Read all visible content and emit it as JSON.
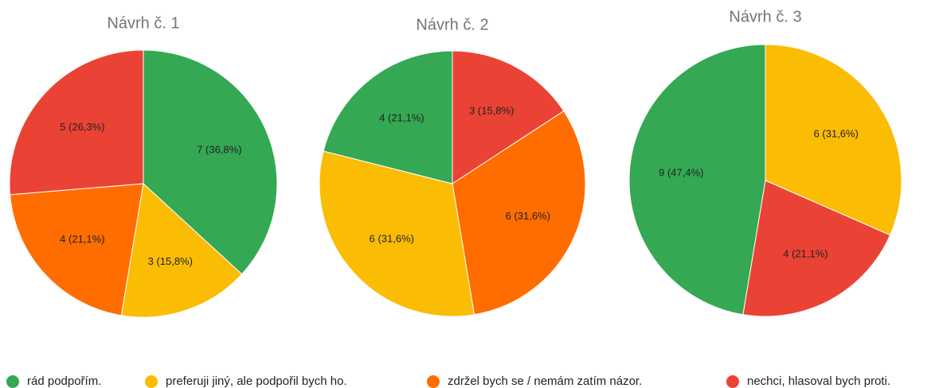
{
  "chart_data": [
    {
      "type": "pie",
      "title": "Návrh č. 1",
      "categories": [
        "rád podpořím.",
        "preferuji jiný, ale podpořil bych ho.",
        "zdržel bych se / nemám zatím názor.",
        "nechci, hlasoval bych proti."
      ],
      "values": [
        7,
        3,
        4,
        5
      ],
      "value_labels": [
        "7 (36,8%)",
        "3 (15,8%)",
        "4 (21,1%)",
        "5 (26,3%)"
      ]
    },
    {
      "type": "pie",
      "title": "Návrh č. 2",
      "categories": [
        "nechci, hlasoval bych proti.",
        "zdržel bych se / nemám zatím názor.",
        "preferuji jiný, ale podpořil bych ho.",
        "rád podpořím."
      ],
      "values": [
        3,
        6,
        6,
        4
      ],
      "value_labels": [
        "3 (15,8%)",
        "6 (31,6%)",
        "6 (31,6%)",
        "4 (21,1%)"
      ]
    },
    {
      "type": "pie",
      "title": "Návrh č. 3",
      "categories": [
        "preferuji jiný, ale podpořil bych ho.",
        "nechci, hlasoval bych proti.",
        "rád podpořím."
      ],
      "values": [
        6,
        4,
        9
      ],
      "value_labels": [
        "6 (31,6%)",
        "4 (21,1%)",
        "9 (47,4%)"
      ]
    }
  ],
  "legend": {
    "labels": [
      "rád podpořím.",
      "preferuji jiný, ale podpořil bych ho.",
      "zdržel bych se / nemám zatím názor.",
      "nechci, hlasoval bych proti."
    ],
    "colors": [
      "#34a853",
      "#fbbc04",
      "#ff6d01",
      "#ea4335"
    ]
  }
}
